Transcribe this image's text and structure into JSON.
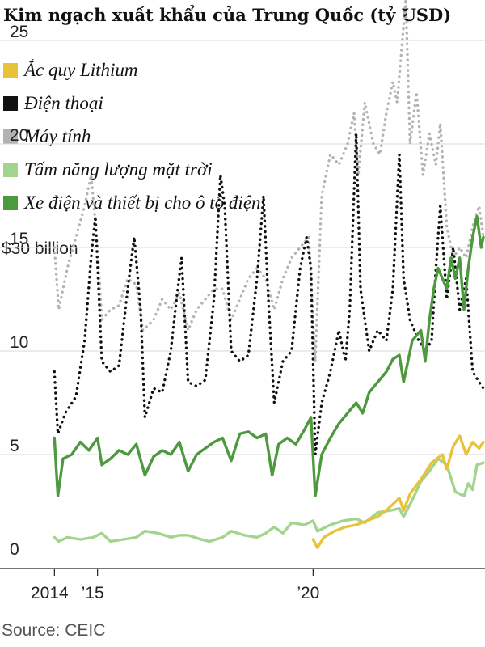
{
  "chart_data": {
    "type": "line",
    "title": "Kim ngạch xuất khẩu của Trung Quốc (tỷ USD)",
    "unit_label": "$30 billion",
    "source": "Source: CEIC",
    "ylim": [
      0,
      30
    ],
    "y_ticks": [
      0,
      5,
      10,
      15,
      20,
      25
    ],
    "x_range": [
      2013.9,
      2023.95
    ],
    "x_ticks": [
      {
        "x": 2014,
        "label": "2014"
      },
      {
        "x": 2015,
        "label": "’15"
      },
      {
        "x": 2020,
        "label": "’20"
      }
    ],
    "grid": true,
    "legend_position": "top-left",
    "series": [
      {
        "name": "Ắc quy Lithium",
        "color": "#e8c33a",
        "style": "solid",
        "points": [
          [
            2020.0,
            0.9
          ],
          [
            2020.1,
            0.5
          ],
          [
            2020.25,
            1.0
          ],
          [
            2020.5,
            1.3
          ],
          [
            2020.75,
            1.5
          ],
          [
            2021.0,
            1.6
          ],
          [
            2021.25,
            1.8
          ],
          [
            2021.5,
            2.0
          ],
          [
            2021.75,
            2.4
          ],
          [
            2022.0,
            2.9
          ],
          [
            2022.1,
            2.3
          ],
          [
            2022.25,
            3.1
          ],
          [
            2022.5,
            3.8
          ],
          [
            2022.75,
            4.6
          ],
          [
            2023.0,
            5.0
          ],
          [
            2023.1,
            4.3
          ],
          [
            2023.25,
            5.4
          ],
          [
            2023.4,
            5.9
          ],
          [
            2023.55,
            5.0
          ],
          [
            2023.7,
            5.6
          ],
          [
            2023.85,
            5.3
          ],
          [
            2023.95,
            5.6
          ]
        ]
      },
      {
        "name": "Điện thoại",
        "color": "#111111",
        "style": "dotted",
        "points": [
          [
            2014.0,
            9.0
          ],
          [
            2014.08,
            6.0
          ],
          [
            2014.25,
            7.0
          ],
          [
            2014.5,
            7.8
          ],
          [
            2014.7,
            10.5
          ],
          [
            2014.85,
            14.5
          ],
          [
            2014.95,
            16.5
          ],
          [
            2015.1,
            9.5
          ],
          [
            2015.3,
            9.0
          ],
          [
            2015.5,
            9.3
          ],
          [
            2015.7,
            13.0
          ],
          [
            2015.85,
            15.5
          ],
          [
            2016.0,
            12.0
          ],
          [
            2016.1,
            6.8
          ],
          [
            2016.3,
            8.2
          ],
          [
            2016.5,
            8.0
          ],
          [
            2016.7,
            10.0
          ],
          [
            2016.85,
            12.8
          ],
          [
            2016.95,
            14.5
          ],
          [
            2017.1,
            8.5
          ],
          [
            2017.3,
            8.3
          ],
          [
            2017.5,
            8.6
          ],
          [
            2017.7,
            12.5
          ],
          [
            2017.85,
            18.5
          ],
          [
            2017.95,
            17.0
          ],
          [
            2018.1,
            10.0
          ],
          [
            2018.3,
            9.5
          ],
          [
            2018.5,
            9.8
          ],
          [
            2018.7,
            13.5
          ],
          [
            2018.85,
            17.5
          ],
          [
            2018.95,
            13.0
          ],
          [
            2019.1,
            7.5
          ],
          [
            2019.3,
            9.5
          ],
          [
            2019.5,
            10.0
          ],
          [
            2019.7,
            14.0
          ],
          [
            2019.85,
            15.5
          ],
          [
            2019.95,
            14.0
          ],
          [
            2020.05,
            5.0
          ],
          [
            2020.2,
            7.5
          ],
          [
            2020.4,
            9.0
          ],
          [
            2020.6,
            11.0
          ],
          [
            2020.75,
            9.5
          ],
          [
            2020.85,
            12.0
          ],
          [
            2021.0,
            20.5
          ],
          [
            2021.1,
            13.0
          ],
          [
            2021.3,
            10.0
          ],
          [
            2021.5,
            11.0
          ],
          [
            2021.7,
            10.5
          ],
          [
            2021.85,
            13.0
          ],
          [
            2022.0,
            19.5
          ],
          [
            2022.1,
            13.5
          ],
          [
            2022.25,
            11.5
          ],
          [
            2022.45,
            10.5
          ],
          [
            2022.6,
            10.0
          ],
          [
            2022.75,
            10.5
          ],
          [
            2022.85,
            14.0
          ],
          [
            2022.95,
            17.0
          ],
          [
            2023.1,
            12.5
          ],
          [
            2023.25,
            15.0
          ],
          [
            2023.4,
            12.0
          ],
          [
            2023.55,
            13.5
          ],
          [
            2023.7,
            9.0
          ],
          [
            2023.85,
            8.5
          ],
          [
            2023.95,
            8.2
          ]
        ]
      },
      {
        "name": "Máy tính",
        "color": "#b3b3b3",
        "style": "dotted",
        "points": [
          [
            2014.0,
            15.0
          ],
          [
            2014.1,
            12.0
          ],
          [
            2014.3,
            14.0
          ],
          [
            2014.5,
            15.5
          ],
          [
            2014.7,
            17.0
          ],
          [
            2014.85,
            18.5
          ],
          [
            2015.0,
            15.0
          ],
          [
            2015.1,
            11.5
          ],
          [
            2015.3,
            12.0
          ],
          [
            2015.5,
            12.2
          ],
          [
            2015.7,
            13.5
          ],
          [
            2015.9,
            13.2
          ],
          [
            2016.05,
            11.0
          ],
          [
            2016.3,
            11.5
          ],
          [
            2016.5,
            12.5
          ],
          [
            2016.7,
            12.0
          ],
          [
            2016.9,
            12.8
          ],
          [
            2017.1,
            11.0
          ],
          [
            2017.3,
            12.0
          ],
          [
            2017.5,
            12.5
          ],
          [
            2017.7,
            13.0
          ],
          [
            2017.9,
            13.0
          ],
          [
            2018.1,
            11.5
          ],
          [
            2018.3,
            12.5
          ],
          [
            2018.5,
            13.5
          ],
          [
            2018.7,
            14.0
          ],
          [
            2018.9,
            13.5
          ],
          [
            2019.1,
            12.0
          ],
          [
            2019.3,
            13.5
          ],
          [
            2019.5,
            14.5
          ],
          [
            2019.7,
            15.0
          ],
          [
            2019.9,
            15.5
          ],
          [
            2020.05,
            9.5
          ],
          [
            2020.2,
            17.5
          ],
          [
            2020.4,
            19.5
          ],
          [
            2020.6,
            19.0
          ],
          [
            2020.8,
            20.0
          ],
          [
            2020.95,
            21.5
          ],
          [
            2021.05,
            18.5
          ],
          [
            2021.2,
            22.0
          ],
          [
            2021.4,
            20.0
          ],
          [
            2021.55,
            19.5
          ],
          [
            2021.7,
            21.5
          ],
          [
            2021.85,
            23.0
          ],
          [
            2021.95,
            22.0
          ],
          [
            2022.05,
            24.5
          ],
          [
            2022.15,
            27.0
          ],
          [
            2022.25,
            20.0
          ],
          [
            2022.4,
            22.5
          ],
          [
            2022.55,
            18.5
          ],
          [
            2022.7,
            20.5
          ],
          [
            2022.85,
            19.0
          ],
          [
            2022.95,
            21.0
          ],
          [
            2023.1,
            16.0
          ],
          [
            2023.25,
            14.5
          ],
          [
            2023.4,
            15.0
          ],
          [
            2023.55,
            14.5
          ],
          [
            2023.7,
            16.0
          ],
          [
            2023.85,
            17.0
          ],
          [
            2023.95,
            15.5
          ]
        ]
      },
      {
        "name": "Tấm năng lượng mặt trời",
        "color": "#a3d48e",
        "style": "solid",
        "points": [
          [
            2014.0,
            1.0
          ],
          [
            2014.1,
            0.8
          ],
          [
            2014.3,
            1.0
          ],
          [
            2014.6,
            0.9
          ],
          [
            2014.9,
            1.0
          ],
          [
            2015.1,
            1.2
          ],
          [
            2015.3,
            0.8
          ],
          [
            2015.6,
            0.9
          ],
          [
            2015.9,
            1.0
          ],
          [
            2016.1,
            1.3
          ],
          [
            2016.4,
            1.2
          ],
          [
            2016.7,
            1.0
          ],
          [
            2016.9,
            1.1
          ],
          [
            2017.1,
            1.1
          ],
          [
            2017.4,
            0.9
          ],
          [
            2017.6,
            0.8
          ],
          [
            2017.9,
            1.0
          ],
          [
            2018.1,
            1.3
          ],
          [
            2018.4,
            1.1
          ],
          [
            2018.7,
            1.0
          ],
          [
            2018.9,
            1.2
          ],
          [
            2019.1,
            1.5
          ],
          [
            2019.3,
            1.2
          ],
          [
            2019.5,
            1.7
          ],
          [
            2019.8,
            1.6
          ],
          [
            2020.0,
            1.8
          ],
          [
            2020.1,
            1.3
          ],
          [
            2020.4,
            1.6
          ],
          [
            2020.7,
            1.8
          ],
          [
            2021.0,
            1.9
          ],
          [
            2021.2,
            1.7
          ],
          [
            2021.5,
            2.2
          ],
          [
            2021.8,
            2.3
          ],
          [
            2022.0,
            2.4
          ],
          [
            2022.1,
            2.0
          ],
          [
            2022.3,
            2.8
          ],
          [
            2022.5,
            3.7
          ],
          [
            2022.7,
            4.2
          ],
          [
            2022.9,
            4.8
          ],
          [
            2023.1,
            4.5
          ],
          [
            2023.3,
            3.2
          ],
          [
            2023.5,
            3.0
          ],
          [
            2023.6,
            3.6
          ],
          [
            2023.7,
            3.3
          ],
          [
            2023.8,
            4.5
          ],
          [
            2023.95,
            4.6
          ]
        ]
      },
      {
        "name": "Xe điện và thiết bị cho ô tô điện",
        "color": "#4c9a3d",
        "style": "solid",
        "points": [
          [
            2014.0,
            5.8
          ],
          [
            2014.08,
            3.0
          ],
          [
            2014.2,
            4.8
          ],
          [
            2014.4,
            5.0
          ],
          [
            2014.6,
            5.6
          ],
          [
            2014.8,
            5.2
          ],
          [
            2015.0,
            5.8
          ],
          [
            2015.1,
            4.5
          ],
          [
            2015.3,
            4.8
          ],
          [
            2015.5,
            5.2
          ],
          [
            2015.7,
            5.0
          ],
          [
            2015.9,
            5.5
          ],
          [
            2016.1,
            4.0
          ],
          [
            2016.3,
            4.9
          ],
          [
            2016.5,
            5.2
          ],
          [
            2016.7,
            5.0
          ],
          [
            2016.9,
            5.6
          ],
          [
            2017.1,
            4.2
          ],
          [
            2017.3,
            5.0
          ],
          [
            2017.5,
            5.3
          ],
          [
            2017.7,
            5.6
          ],
          [
            2017.9,
            5.8
          ],
          [
            2018.1,
            4.7
          ],
          [
            2018.3,
            6.0
          ],
          [
            2018.5,
            6.1
          ],
          [
            2018.7,
            5.8
          ],
          [
            2018.9,
            6.0
          ],
          [
            2019.05,
            4.0
          ],
          [
            2019.2,
            5.5
          ],
          [
            2019.4,
            5.8
          ],
          [
            2019.6,
            5.5
          ],
          [
            2019.8,
            6.2
          ],
          [
            2019.95,
            6.8
          ],
          [
            2020.05,
            3.0
          ],
          [
            2020.2,
            5.0
          ],
          [
            2020.4,
            5.8
          ],
          [
            2020.6,
            6.5
          ],
          [
            2020.8,
            7.0
          ],
          [
            2021.0,
            7.5
          ],
          [
            2021.15,
            7.0
          ],
          [
            2021.3,
            8.0
          ],
          [
            2021.5,
            8.5
          ],
          [
            2021.7,
            9.0
          ],
          [
            2021.85,
            9.6
          ],
          [
            2022.0,
            9.8
          ],
          [
            2022.1,
            8.5
          ],
          [
            2022.3,
            10.5
          ],
          [
            2022.5,
            11.0
          ],
          [
            2022.6,
            9.5
          ],
          [
            2022.7,
            11.5
          ],
          [
            2022.8,
            13.0
          ],
          [
            2022.9,
            14.0
          ],
          [
            2023.0,
            13.5
          ],
          [
            2023.1,
            13.0
          ],
          [
            2023.2,
            14.5
          ],
          [
            2023.3,
            13.5
          ],
          [
            2023.4,
            14.5
          ],
          [
            2023.5,
            12.0
          ],
          [
            2023.6,
            14.0
          ],
          [
            2023.7,
            15.5
          ],
          [
            2023.8,
            16.5
          ],
          [
            2023.9,
            15.0
          ],
          [
            2023.95,
            15.5
          ]
        ]
      }
    ]
  }
}
